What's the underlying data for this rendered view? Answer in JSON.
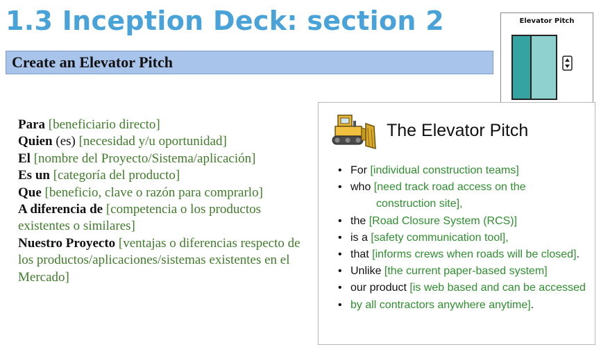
{
  "header": {
    "title": "1.3 Inception Deck: section 2",
    "subtitle": "Create an Elevator Pitch"
  },
  "card": {
    "title": "Elevator Pitch",
    "icon": "elevator-icon"
  },
  "template_lines": [
    {
      "keyword": "Para",
      "text": " [beneficiario directo]"
    },
    {
      "keyword": "Quien",
      "mid": " (es) ",
      "text": "[necesidad y/u oportunidad]"
    },
    {
      "keyword": "El",
      "text": " [nombre del Proyecto/Sistema/aplicación]"
    },
    {
      "keyword": "Es un",
      "text": " [categoría del producto]"
    },
    {
      "keyword": "Que",
      "text": " [beneficio, clave o razón para comprarlo]"
    },
    {
      "keyword": "A diferencia de",
      "text": " [competencia o los productos existentes o similares]"
    },
    {
      "keyword": "Nuestro Proyecto",
      "text": " [ventajas o diferencias respecto de los productos/aplicaciones/sistemas existentes en el Mercado]"
    }
  ],
  "example": {
    "title": "The Elevator Pitch",
    "icon": "bulldozer-icon",
    "bullets": [
      {
        "lead": "For ",
        "value": "[individual construction teams]",
        "tail": ""
      },
      {
        "lead": "who ",
        "value": "[need track road access on the",
        "tail": ""
      },
      {
        "lead": "",
        "value": "construction site],",
        "tail": "",
        "continuation": true
      },
      {
        "lead": "the ",
        "value": "[Road Closure System (RCS)]",
        "tail": ""
      },
      {
        "lead": "is a ",
        "value": "[safety communication tool],",
        "tail": ""
      },
      {
        "lead": "that ",
        "value": "[informs crews when roads will be closed]",
        "tail": "."
      },
      {
        "lead": "Unlike ",
        "value": "[the current paper-based system]",
        "tail": ""
      },
      {
        "lead": "our product ",
        "value": "[is web based and can be accessed",
        "tail": ""
      },
      {
        "lead": "",
        "value": "by all contractors anywhere anytime]",
        "tail": "."
      }
    ]
  },
  "colors": {
    "title": "#4aa3d8",
    "subtitle_bar": "#a9c4ea",
    "template_placeholder": "#3f7d2a",
    "example_placeholder": "#2e8f2e",
    "elevator_door": "#35a3a0"
  }
}
